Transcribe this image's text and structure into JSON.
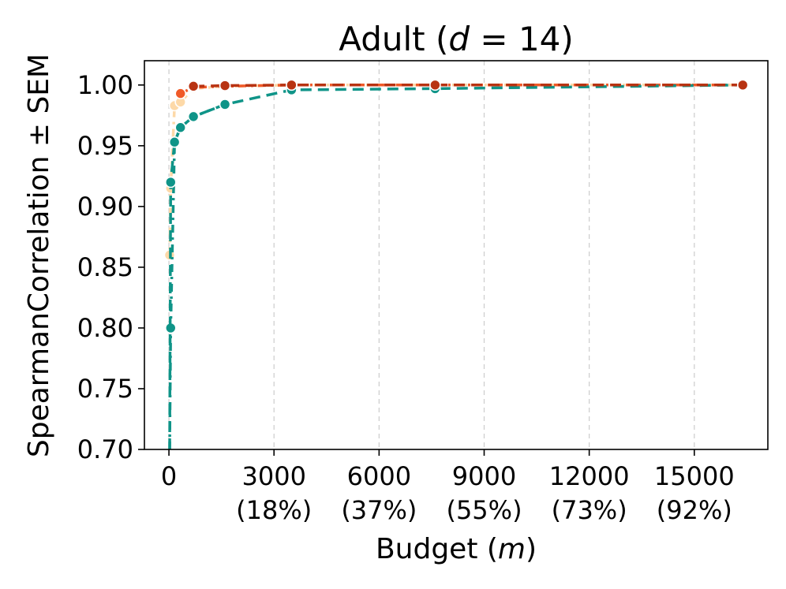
{
  "chart_data": {
    "type": "line",
    "title": "Adult (d = 14)",
    "title_parts": {
      "pre": "Adult (",
      "var": "d",
      "post": " = 14)"
    },
    "xlabel": "Budget (m)",
    "xlabel_parts": {
      "pre": "Budget (",
      "var": "m",
      "post": ")"
    },
    "ylabel": "SpearmanCorrelation ± SEM",
    "xlim": [
      -700,
      17100
    ],
    "ylim": [
      0.7,
      1.02
    ],
    "grid": {
      "x": true,
      "y": false
    },
    "x_ticks": [
      {
        "value": 0,
        "label": "0",
        "sublabel": ""
      },
      {
        "value": 3000,
        "label": "3000",
        "sublabel": "(18%)"
      },
      {
        "value": 6000,
        "label": "6000",
        "sublabel": "(37%)"
      },
      {
        "value": 9000,
        "label": "9000",
        "sublabel": "(55%)"
      },
      {
        "value": 12000,
        "label": "12000",
        "sublabel": "(73%)"
      },
      {
        "value": 15000,
        "label": "15000",
        "sublabel": "(92%)"
      }
    ],
    "y_ticks": [
      {
        "value": 0.7,
        "label": "0.70"
      },
      {
        "value": 0.75,
        "label": "0.75"
      },
      {
        "value": 0.8,
        "label": "0.80"
      },
      {
        "value": 0.85,
        "label": "0.85"
      },
      {
        "value": 0.9,
        "label": "0.90"
      },
      {
        "value": 0.95,
        "label": "0.95"
      },
      {
        "value": 1.0,
        "label": "1.00"
      }
    ],
    "series": [
      {
        "color": "#fdd9a8",
        "dash": "10 6 3 6",
        "x": [
          20,
          50,
          160,
          330,
          700,
          1600,
          3500,
          7600,
          16384
        ],
        "y": [
          0.86,
          0.915,
          0.983,
          0.986,
          0.997,
          0.999,
          1.0,
          1.0,
          1.0
        ]
      },
      {
        "color": "#f05a28",
        "dash": "10 6 3 6",
        "x": [
          330,
          700,
          1600,
          3500,
          7600,
          16384
        ],
        "y": [
          0.993,
          0.998,
          0.999,
          1.0,
          1.0,
          1.0
        ]
      },
      {
        "color": "#0f9488",
        "dash": "10 6 3 6",
        "x": [
          20,
          50,
          160,
          330,
          700,
          1600
        ],
        "y": [
          0.7,
          0.8,
          0.953,
          0.965,
          0.974,
          0.984
        ]
      },
      {
        "color": "#0f9488",
        "dash": "14 8",
        "x": [
          20,
          50,
          160,
          330,
          700,
          1600,
          3500,
          7600,
          16384
        ],
        "y": [
          0.7,
          0.92,
          0.953,
          0.965,
          0.974,
          0.984,
          0.996,
          0.997,
          1.0
        ]
      },
      {
        "color": "#b83312",
        "dash": "14 8",
        "x": [
          700,
          1600,
          3500,
          7600,
          16384
        ],
        "y": [
          0.999,
          0.9995,
          1.0,
          1.0,
          1.0
        ]
      }
    ]
  }
}
